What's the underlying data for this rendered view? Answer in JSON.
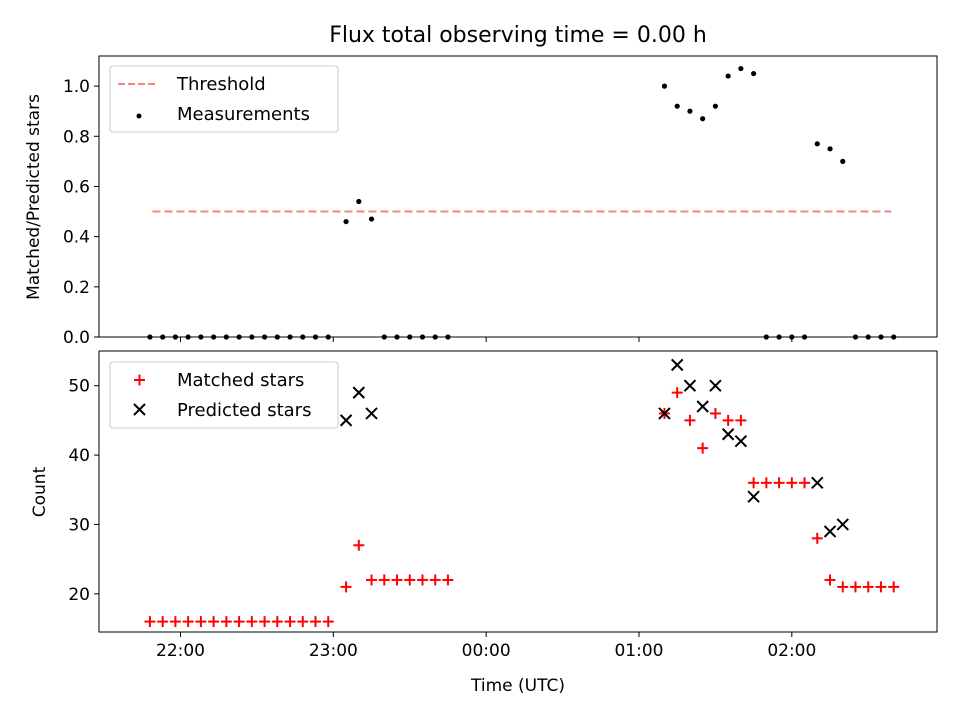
{
  "chart_data": [
    {
      "type": "scatter",
      "title": "Flux total observing time = 0.00 h",
      "xlabel": "",
      "ylabel": "Matched/Predicted stars",
      "xlim": [
        "21:28",
        "02:57"
      ],
      "ylim": [
        0,
        1.12
      ],
      "yticks": [
        0.0,
        0.2,
        0.4,
        0.6,
        0.8,
        1.0
      ],
      "ytick_labels": [
        "0.0",
        "0.2",
        "0.4",
        "0.6",
        "0.8",
        "1.0"
      ],
      "legend_position": "top-left",
      "legend": [
        "Threshold",
        "Measurements"
      ],
      "threshold": {
        "name": "Threshold",
        "y": 0.5,
        "x_start": "21:49",
        "x_end": "02:39",
        "color": "#ff7f7f",
        "style": "dashed"
      },
      "series": [
        {
          "name": "Measurements",
          "color": "#000000",
          "marker": "dot",
          "x": [
            "21:48",
            "21:53",
            "21:58",
            "22:03",
            "22:08",
            "22:13",
            "22:18",
            "22:23",
            "22:28",
            "22:33",
            "22:38",
            "22:43",
            "22:48",
            "22:53",
            "22:58",
            "23:05",
            "23:10",
            "23:15",
            "23:20",
            "23:25",
            "23:30",
            "23:35",
            "23:40",
            "23:45",
            "01:10",
            "01:15",
            "01:20",
            "01:25",
            "01:30",
            "01:35",
            "01:40",
            "01:45",
            "01:50",
            "01:55",
            "02:00",
            "02:05",
            "02:10",
            "02:15",
            "02:20",
            "02:25",
            "02:30",
            "02:35",
            "02:40"
          ],
          "y": [
            0,
            0,
            0,
            0,
            0,
            0,
            0,
            0,
            0,
            0,
            0,
            0,
            0,
            0,
            0,
            0.46,
            0.54,
            0.47,
            0,
            0,
            0,
            0,
            0,
            0,
            1.0,
            0.92,
            0.9,
            0.87,
            0.92,
            1.04,
            1.07,
            1.05,
            0,
            0,
            0,
            0,
            0.77,
            0.75,
            0.7,
            0,
            0,
            0,
            0
          ]
        }
      ]
    },
    {
      "type": "scatter",
      "title": "",
      "xlabel": "Time (UTC)",
      "ylabel": "Count",
      "xlim": [
        "21:28",
        "02:57"
      ],
      "ylim": [
        14.5,
        55
      ],
      "yticks": [
        20,
        30,
        40,
        50
      ],
      "ytick_labels": [
        "20",
        "30",
        "40",
        "50"
      ],
      "xticks": [
        "22:00",
        "23:00",
        "00:00",
        "01:00",
        "02:00"
      ],
      "legend_position": "top-left",
      "legend": [
        "Matched stars",
        "Predicted stars"
      ],
      "series": [
        {
          "name": "Matched stars",
          "color": "#ff0000",
          "marker": "plus",
          "x": [
            "21:48",
            "21:53",
            "21:58",
            "22:03",
            "22:08",
            "22:13",
            "22:18",
            "22:23",
            "22:28",
            "22:33",
            "22:38",
            "22:43",
            "22:48",
            "22:53",
            "22:58",
            "23:05",
            "23:10",
            "23:15",
            "23:20",
            "23:25",
            "23:30",
            "23:35",
            "23:40",
            "23:45",
            "01:10",
            "01:15",
            "01:20",
            "01:25",
            "01:30",
            "01:35",
            "01:40",
            "01:45",
            "01:50",
            "01:55",
            "02:00",
            "02:05",
            "02:10",
            "02:15",
            "02:20",
            "02:25",
            "02:30",
            "02:35",
            "02:40"
          ],
          "y": [
            16,
            16,
            16,
            16,
            16,
            16,
            16,
            16,
            16,
            16,
            16,
            16,
            16,
            16,
            16,
            21,
            27,
            22,
            22,
            22,
            22,
            22,
            22,
            22,
            46,
            49,
            45,
            41,
            46,
            45,
            45,
            36,
            36,
            36,
            36,
            36,
            28,
            22,
            21,
            21,
            21,
            21,
            21
          ]
        },
        {
          "name": "Predicted stars",
          "color": "#000000",
          "marker": "x",
          "x": [
            "23:05",
            "23:10",
            "23:15",
            "01:10",
            "01:15",
            "01:20",
            "01:25",
            "01:30",
            "01:35",
            "01:40",
            "01:45",
            "02:10",
            "02:15",
            "02:20"
          ],
          "y": [
            45,
            49,
            46,
            46,
            53,
            50,
            47,
            50,
            43,
            42,
            34,
            36,
            29,
            30
          ]
        }
      ]
    }
  ]
}
